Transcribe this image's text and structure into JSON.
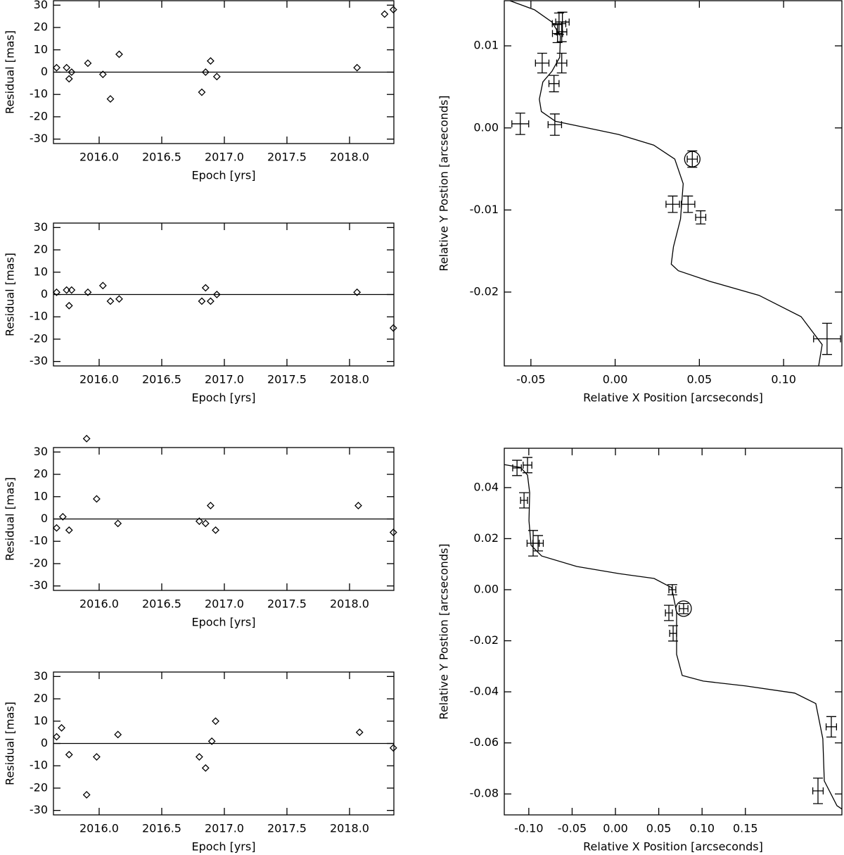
{
  "chart_data": [
    {
      "type": "scatter",
      "marker": "diamond",
      "xlabel": "Epoch [yrs]",
      "ylabel": "Residual  [mas]",
      "reference_line": 0,
      "x": [
        2015.66,
        2015.74,
        2015.76,
        2015.78,
        2015.91,
        2016.03,
        2016.09,
        2016.16,
        2016.82,
        2016.85,
        2016.89,
        2016.94,
        2018.06,
        2018.28,
        2018.35
      ],
      "values": [
        2,
        2,
        -3,
        0,
        4,
        -1,
        -12,
        8,
        -9,
        0,
        5,
        -2,
        2,
        26,
        28
      ],
      "xlim": [
        2015.635,
        2018.354
      ],
      "ylim": [
        -32,
        32
      ],
      "xticks": [
        {
          "value": 2016,
          "label": "2016.0"
        },
        {
          "value": 2016.5,
          "label": "2016.5"
        },
        {
          "value": 2017,
          "label": "2017.0"
        },
        {
          "value": 2017.5,
          "label": "2017.5"
        },
        {
          "value": 2018,
          "label": "2018.0"
        }
      ],
      "yticks": [
        30,
        20,
        10,
        0,
        -10,
        -20,
        -30
      ]
    },
    {
      "type": "scatter",
      "marker": "diamond",
      "xlabel": "Epoch [yrs]",
      "ylabel": "Residual  [mas]",
      "reference_line": 0,
      "x": [
        2015.66,
        2015.74,
        2015.76,
        2015.78,
        2015.91,
        2016.03,
        2016.09,
        2016.16,
        2016.82,
        2016.85,
        2016.89,
        2016.94,
        2018.06,
        2018.35
      ],
      "values": [
        1,
        2,
        -5,
        2,
        1,
        4,
        -3,
        -2,
        -3,
        3,
        -3,
        0,
        1,
        -15
      ],
      "xlim": [
        2015.635,
        2018.354
      ],
      "ylim": [
        -32,
        32
      ],
      "xticks": [
        {
          "value": 2016,
          "label": "2016.0"
        },
        {
          "value": 2016.5,
          "label": "2016.5"
        },
        {
          "value": 2017,
          "label": "2017.0"
        },
        {
          "value": 2017.5,
          "label": "2017.5"
        },
        {
          "value": 2018,
          "label": "2018.0"
        }
      ],
      "yticks": [
        30,
        20,
        10,
        0,
        -10,
        -20,
        -30
      ]
    },
    {
      "type": "scatter",
      "marker": "diamond",
      "xlabel": "Epoch [yrs]",
      "ylabel": "Residual  [mas]",
      "reference_line": 0,
      "x": [
        2015.66,
        2015.71,
        2015.76,
        2015.9,
        2015.98,
        2016.15,
        2016.8,
        2016.85,
        2016.89,
        2016.93,
        2018.07,
        2018.35
      ],
      "values": [
        -4,
        1,
        -5,
        36,
        9,
        -2,
        -1,
        -2,
        6,
        -5,
        6,
        -6
      ],
      "xlim": [
        2015.635,
        2018.354
      ],
      "ylim": [
        -32,
        32
      ],
      "xticks": [
        {
          "value": 2016,
          "label": "2016.0"
        },
        {
          "value": 2016.5,
          "label": "2016.5"
        },
        {
          "value": 2017,
          "label": "2017.0"
        },
        {
          "value": 2017.5,
          "label": "2017.5"
        },
        {
          "value": 2018,
          "label": "2018.0"
        }
      ],
      "yticks": [
        30,
        20,
        10,
        0,
        -10,
        -20,
        -30
      ]
    },
    {
      "type": "scatter",
      "marker": "diamond",
      "xlabel": "Epoch [yrs]",
      "ylabel": "Residual  [mas]",
      "reference_line": 0,
      "x": [
        2015.66,
        2015.7,
        2015.76,
        2015.9,
        2015.98,
        2016.15,
        2016.8,
        2016.85,
        2016.9,
        2016.93,
        2018.08,
        2018.35
      ],
      "values": [
        3,
        7,
        -5,
        -23,
        -6,
        4,
        -6,
        -11,
        1,
        10,
        5,
        -2
      ],
      "xlim": [
        2015.635,
        2018.354
      ],
      "ylim": [
        -32,
        32
      ],
      "xticks": [
        {
          "value": 2016,
          "label": "2016.0"
        },
        {
          "value": 2016.5,
          "label": "2016.5"
        },
        {
          "value": 2017,
          "label": "2017.0"
        },
        {
          "value": 2017.5,
          "label": "2017.5"
        },
        {
          "value": 2018,
          "label": "2018.0"
        }
      ],
      "yticks": [
        30,
        20,
        10,
        0,
        -10,
        -20,
        -30
      ]
    },
    {
      "type": "errorbar",
      "xlabel": "Relative X Position [arcseconds]",
      "ylabel": "Relative Y Postion [arcseconds]",
      "series": [
        {
          "marker": "cross",
          "x": [
            -0.0563,
            -0.0433,
            -0.0363,
            -0.0358,
            -0.0333,
            -0.0317,
            -0.0313,
            -0.0317,
            -0.0342,
            0.0342,
            0.0433,
            0.0508,
            0.1258
          ],
          "values": [
            0.0005,
            0.0079,
            0.0054,
            0.0004,
            0.0127,
            0.0117,
            0.0129,
            0.0079,
            0.0115,
            -0.0093,
            -0.0093,
            -0.0109,
            -0.0257
          ],
          "xerr": [
            0.005,
            0.004,
            0.003,
            0.004,
            0.004,
            0.003,
            0.004,
            0.003,
            0.003,
            0.004,
            0.004,
            0.003,
            0.008
          ],
          "yerr": [
            0.0013,
            0.0012,
            0.001,
            0.0013,
            0.0013,
            0.0012,
            0.0012,
            0.0012,
            0.0011,
            0.001,
            0.001,
            0.0008,
            0.0019
          ]
        },
        {
          "marker": "circled-cross",
          "x": [
            0.0458
          ],
          "values": [
            -0.0038
          ],
          "xerr": [
            0.003
          ],
          "yerr": [
            0.001
          ]
        }
      ],
      "curve": {
        "x": [
          -0.0625,
          -0.0479,
          -0.0375,
          -0.0325,
          -0.0329,
          -0.0375,
          -0.0429,
          -0.045,
          -0.0438,
          -0.0354,
          -0.0188,
          0.0021,
          0.0229,
          0.0354,
          0.0404,
          0.0388,
          0.0346,
          0.0333,
          0.0375,
          0.0563,
          0.0854,
          0.1104,
          0.1229,
          0.1208
        ],
        "values": [
          0.0155,
          0.0144,
          0.0129,
          0.0112,
          0.0086,
          0.0069,
          0.0056,
          0.0035,
          0.002,
          0.0008,
          0.0001,
          -0.0008,
          -0.0021,
          -0.0038,
          -0.0068,
          -0.0111,
          -0.0145,
          -0.0166,
          -0.0174,
          -0.0187,
          -0.0204,
          -0.023,
          -0.0264,
          -0.029
        ]
      },
      "xlim": [
        -0.0658,
        0.1346
      ],
      "ylim": [
        -0.029,
        0.0155
      ],
      "xticks": [
        {
          "value": -0.05,
          "label": "-0.05"
        },
        {
          "value": 0,
          "label": "0.00"
        },
        {
          "value": 0.05,
          "label": "0.05"
        },
        {
          "value": 0.1,
          "label": "0.10"
        }
      ],
      "yticks": [
        {
          "value": 0.01,
          "label": "0.01"
        },
        {
          "value": 0,
          "label": "0.00"
        },
        {
          "value": -0.01,
          "label": "-0.01"
        },
        {
          "value": -0.02,
          "label": "-0.02"
        }
      ]
    },
    {
      "type": "errorbar",
      "xlabel": "Relative X Position [arcseconds]",
      "ylabel": "Relative Y Postion [arcseconds]",
      "series": [
        {
          "marker": "cross",
          "x": [
            -0.1136,
            -0.1015,
            -0.1055,
            -0.095,
            -0.0893,
            0.0657,
            0.0617,
            0.0666,
            0.2492,
            0.2338
          ],
          "values": [
            0.0477,
            0.0488,
            0.035,
            0.0182,
            0.0182,
            0.0,
            -0.0091,
            -0.0171,
            -0.0537,
            -0.0788
          ],
          "xerr": [
            0.005,
            0.005,
            0.004,
            0.007,
            0.006,
            0.004,
            0.004,
            0.004,
            0.006,
            0.006
          ],
          "yerr": [
            0.003,
            0.003,
            0.003,
            0.005,
            0.003,
            0.002,
            0.003,
            0.003,
            0.004,
            0.005
          ]
        },
        {
          "marker": "circled-cross",
          "x": [
            0.0787
          ],
          "values": [
            -0.0074
          ],
          "xerr": [
            0.005
          ],
          "yerr": [
            0.002
          ]
        }
      ],
      "curve": {
        "x": [
          -0.1282,
          -0.1096,
          -0.1015,
          -0.099,
          -0.0998,
          -0.0974,
          -0.0852,
          -0.0446,
          0.0041,
          0.0446,
          0.0649,
          0.0706,
          0.0706,
          0.0771,
          0.1015,
          0.1502,
          0.207,
          0.2313,
          0.2394,
          0.2411,
          0.2557,
          0.2614
        ],
        "values": [
          0.049,
          0.0479,
          0.0449,
          0.038,
          0.027,
          0.0174,
          0.0132,
          0.0091,
          0.0063,
          0.0044,
          0.0008,
          -0.0088,
          -0.0253,
          -0.0336,
          -0.0358,
          -0.0377,
          -0.0405,
          -0.0446,
          -0.0584,
          -0.0749,
          -0.0846,
          -0.0859
        ]
      },
      "xlim": [
        -0.1283,
        0.2614
      ],
      "ylim": [
        -0.0882,
        0.0554
      ],
      "xticks": [
        {
          "value": -0.1,
          "label": "-0.10"
        },
        {
          "value": -0.05,
          "label": "-0.05"
        },
        {
          "value": 0,
          "label": "0.00"
        },
        {
          "value": 0.05,
          "label": "0.05"
        },
        {
          "value": 0.1,
          "label": "0.10"
        },
        {
          "value": 0.15,
          "label": "0.15"
        }
      ],
      "yticks": [
        {
          "value": 0.04,
          "label": "0.04"
        },
        {
          "value": 0.02,
          "label": "0.02"
        },
        {
          "value": 0,
          "label": "0.00"
        },
        {
          "value": -0.02,
          "label": "-0.02"
        },
        {
          "value": -0.04,
          "label": "-0.04"
        },
        {
          "value": -0.06,
          "label": "-0.06"
        },
        {
          "value": -0.08,
          "label": "-0.08"
        }
      ]
    }
  ]
}
